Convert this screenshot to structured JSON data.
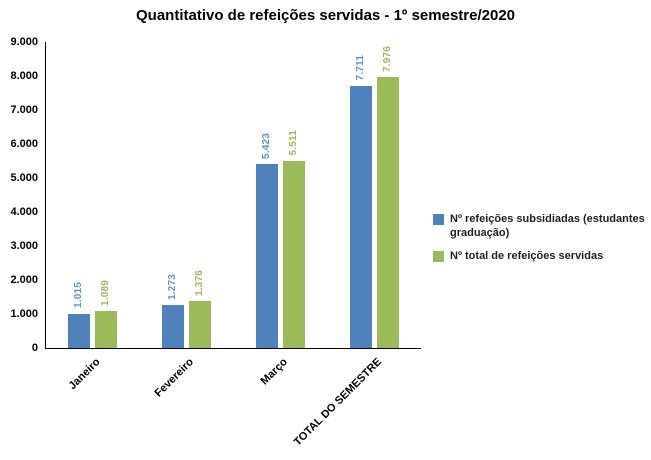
{
  "title": "Quantitativo de refeições servidas - 1º semestre/2020",
  "chart_data": {
    "type": "bar",
    "title": "Quantitativo de refeições servidas - 1º semestre/2020",
    "categories": [
      "Janeiro",
      "Fevereiro",
      "Março",
      "TOTAL DO SEMESTRE"
    ],
    "series": [
      {
        "name": "Nº refeições subsidiadas (estudantes graduação)",
        "color": "#4F81BD",
        "label_color": "#5E93D1",
        "values": [
          1015,
          1273,
          5423,
          7711
        ],
        "labels": [
          "1.015",
          "1.273",
          "5.423",
          "7.711"
        ]
      },
      {
        "name": "Nº total de refeições servidas",
        "color": "#9BBB59",
        "label_color": "#9BBB59",
        "values": [
          1089,
          1376,
          5511,
          7976
        ],
        "labels": [
          "1.089",
          "1.376",
          "5.511",
          "7.976"
        ]
      }
    ],
    "xlabel": "",
    "ylabel": "",
    "y_axis": {
      "min": 0,
      "max": 9000,
      "step": 1000,
      "tick_labels": [
        "0",
        "1.000",
        "2.000",
        "3.000",
        "4.000",
        "5.000",
        "6.000",
        "7.000",
        "8.000",
        "9.000"
      ]
    },
    "legend_position": "right",
    "grid": false,
    "data_labels": "rotated-vertical-above-bars"
  }
}
